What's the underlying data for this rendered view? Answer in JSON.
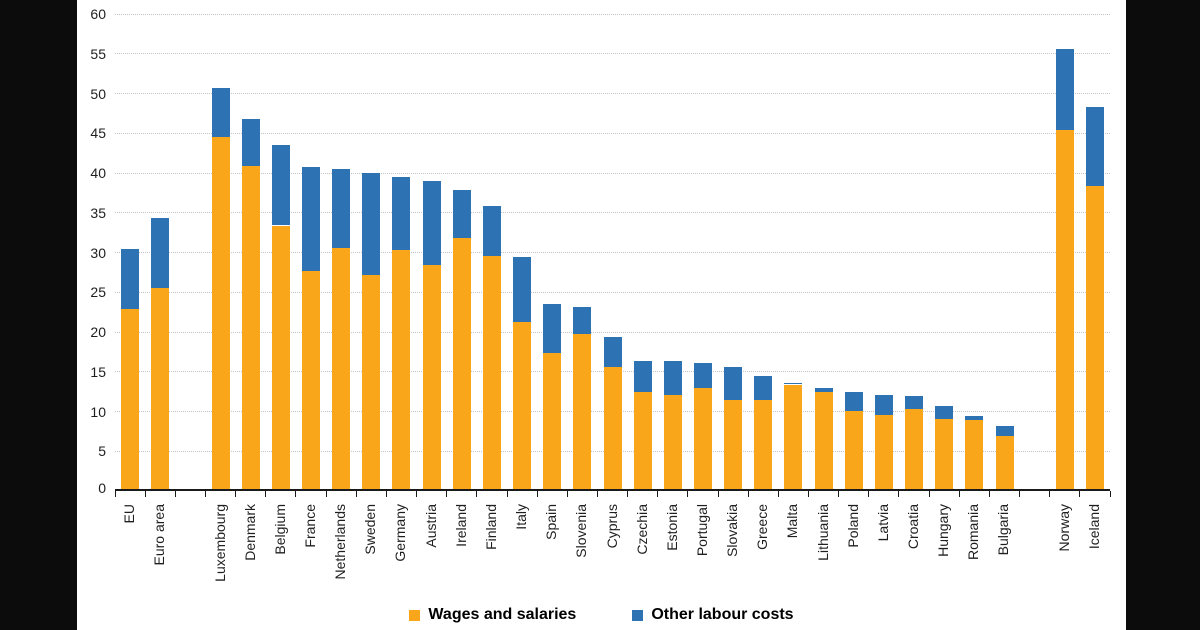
{
  "colors": {
    "wages": "#F9A61B",
    "other": "#2D73B4",
    "grid": "#C3C3C3",
    "axis": "#1A1A1A",
    "panel_background": "#FFFFFF",
    "page_background": "#0C0C0C"
  },
  "chart_data": {
    "type": "bar",
    "stacked": true,
    "grid": "horizontal dotted lines every 5 units",
    "legend_position": "bottom center",
    "ylim": [
      0,
      60
    ],
    "ytick_step": 5,
    "series": [
      {
        "name": "Wages and salaries",
        "color_key": "wages"
      },
      {
        "name": "Other labour costs",
        "color_key": "other"
      }
    ],
    "items": [
      {
        "label": "EU",
        "wages": 22.9,
        "other": 7.6,
        "total": 30.5
      },
      {
        "label": "Euro area",
        "wages": 25.5,
        "other": 8.8,
        "total": 34.3
      },
      {
        "label": "Luxembourg",
        "wages": 44.5,
        "other": 6.2,
        "total": 50.7,
        "gap_before": true
      },
      {
        "label": "Denmark",
        "wages": 40.9,
        "other": 5.9,
        "total": 46.8
      },
      {
        "label": "Belgium",
        "wages": 33.4,
        "other": 10.1,
        "total": 43.5
      },
      {
        "label": "France",
        "wages": 27.7,
        "other": 13.1,
        "total": 40.8
      },
      {
        "label": "Netherlands",
        "wages": 30.6,
        "other": 9.9,
        "total": 40.5
      },
      {
        "label": "Sweden",
        "wages": 27.2,
        "other": 12.8,
        "total": 40.0
      },
      {
        "label": "Germany",
        "wages": 30.3,
        "other": 9.2,
        "total": 39.5
      },
      {
        "label": "Austria",
        "wages": 28.4,
        "other": 10.6,
        "total": 39.0
      },
      {
        "label": "Ireland",
        "wages": 31.8,
        "other": 6.1,
        "total": 37.9
      },
      {
        "label": "Finland",
        "wages": 29.6,
        "other": 6.3,
        "total": 35.9
      },
      {
        "label": "Italy",
        "wages": 21.3,
        "other": 8.1,
        "total": 29.4
      },
      {
        "label": "Spain",
        "wages": 17.4,
        "other": 6.1,
        "total": 23.5
      },
      {
        "label": "Slovenia",
        "wages": 19.8,
        "other": 3.3,
        "total": 23.1
      },
      {
        "label": "Cyprus",
        "wages": 15.6,
        "other": 3.8,
        "total": 19.4
      },
      {
        "label": "Czechia",
        "wages": 12.4,
        "other": 4.0,
        "total": 16.4
      },
      {
        "label": "Estonia",
        "wages": 12.1,
        "other": 4.2,
        "total": 16.3
      },
      {
        "label": "Portugal",
        "wages": 12.9,
        "other": 3.2,
        "total": 16.1
      },
      {
        "label": "Slovakia",
        "wages": 11.4,
        "other": 4.2,
        "total": 15.6
      },
      {
        "label": "Greece",
        "wages": 11.4,
        "other": 3.1,
        "total": 14.5
      },
      {
        "label": "Malta",
        "wages": 13.4,
        "other": 0.2,
        "total": 13.6
      },
      {
        "label": "Lithuania",
        "wages": 12.4,
        "other": 0.6,
        "total": 13.0
      },
      {
        "label": "Poland",
        "wages": 10.1,
        "other": 2.4,
        "total": 12.5
      },
      {
        "label": "Latvia",
        "wages": 9.6,
        "other": 2.5,
        "total": 12.1
      },
      {
        "label": "Croatia",
        "wages": 10.3,
        "other": 1.6,
        "total": 11.9
      },
      {
        "label": "Hungary",
        "wages": 9.1,
        "other": 1.6,
        "total": 10.7
      },
      {
        "label": "Romania",
        "wages": 8.9,
        "other": 0.6,
        "total": 9.5
      },
      {
        "label": "Bulgaria",
        "wages": 6.9,
        "other": 1.3,
        "total": 8.2
      },
      {
        "label": "Norway",
        "wages": 45.4,
        "other": 10.2,
        "total": 55.6,
        "gap_before": true
      },
      {
        "label": "Iceland",
        "wages": 38.4,
        "other": 9.9,
        "total": 48.3
      }
    ]
  }
}
